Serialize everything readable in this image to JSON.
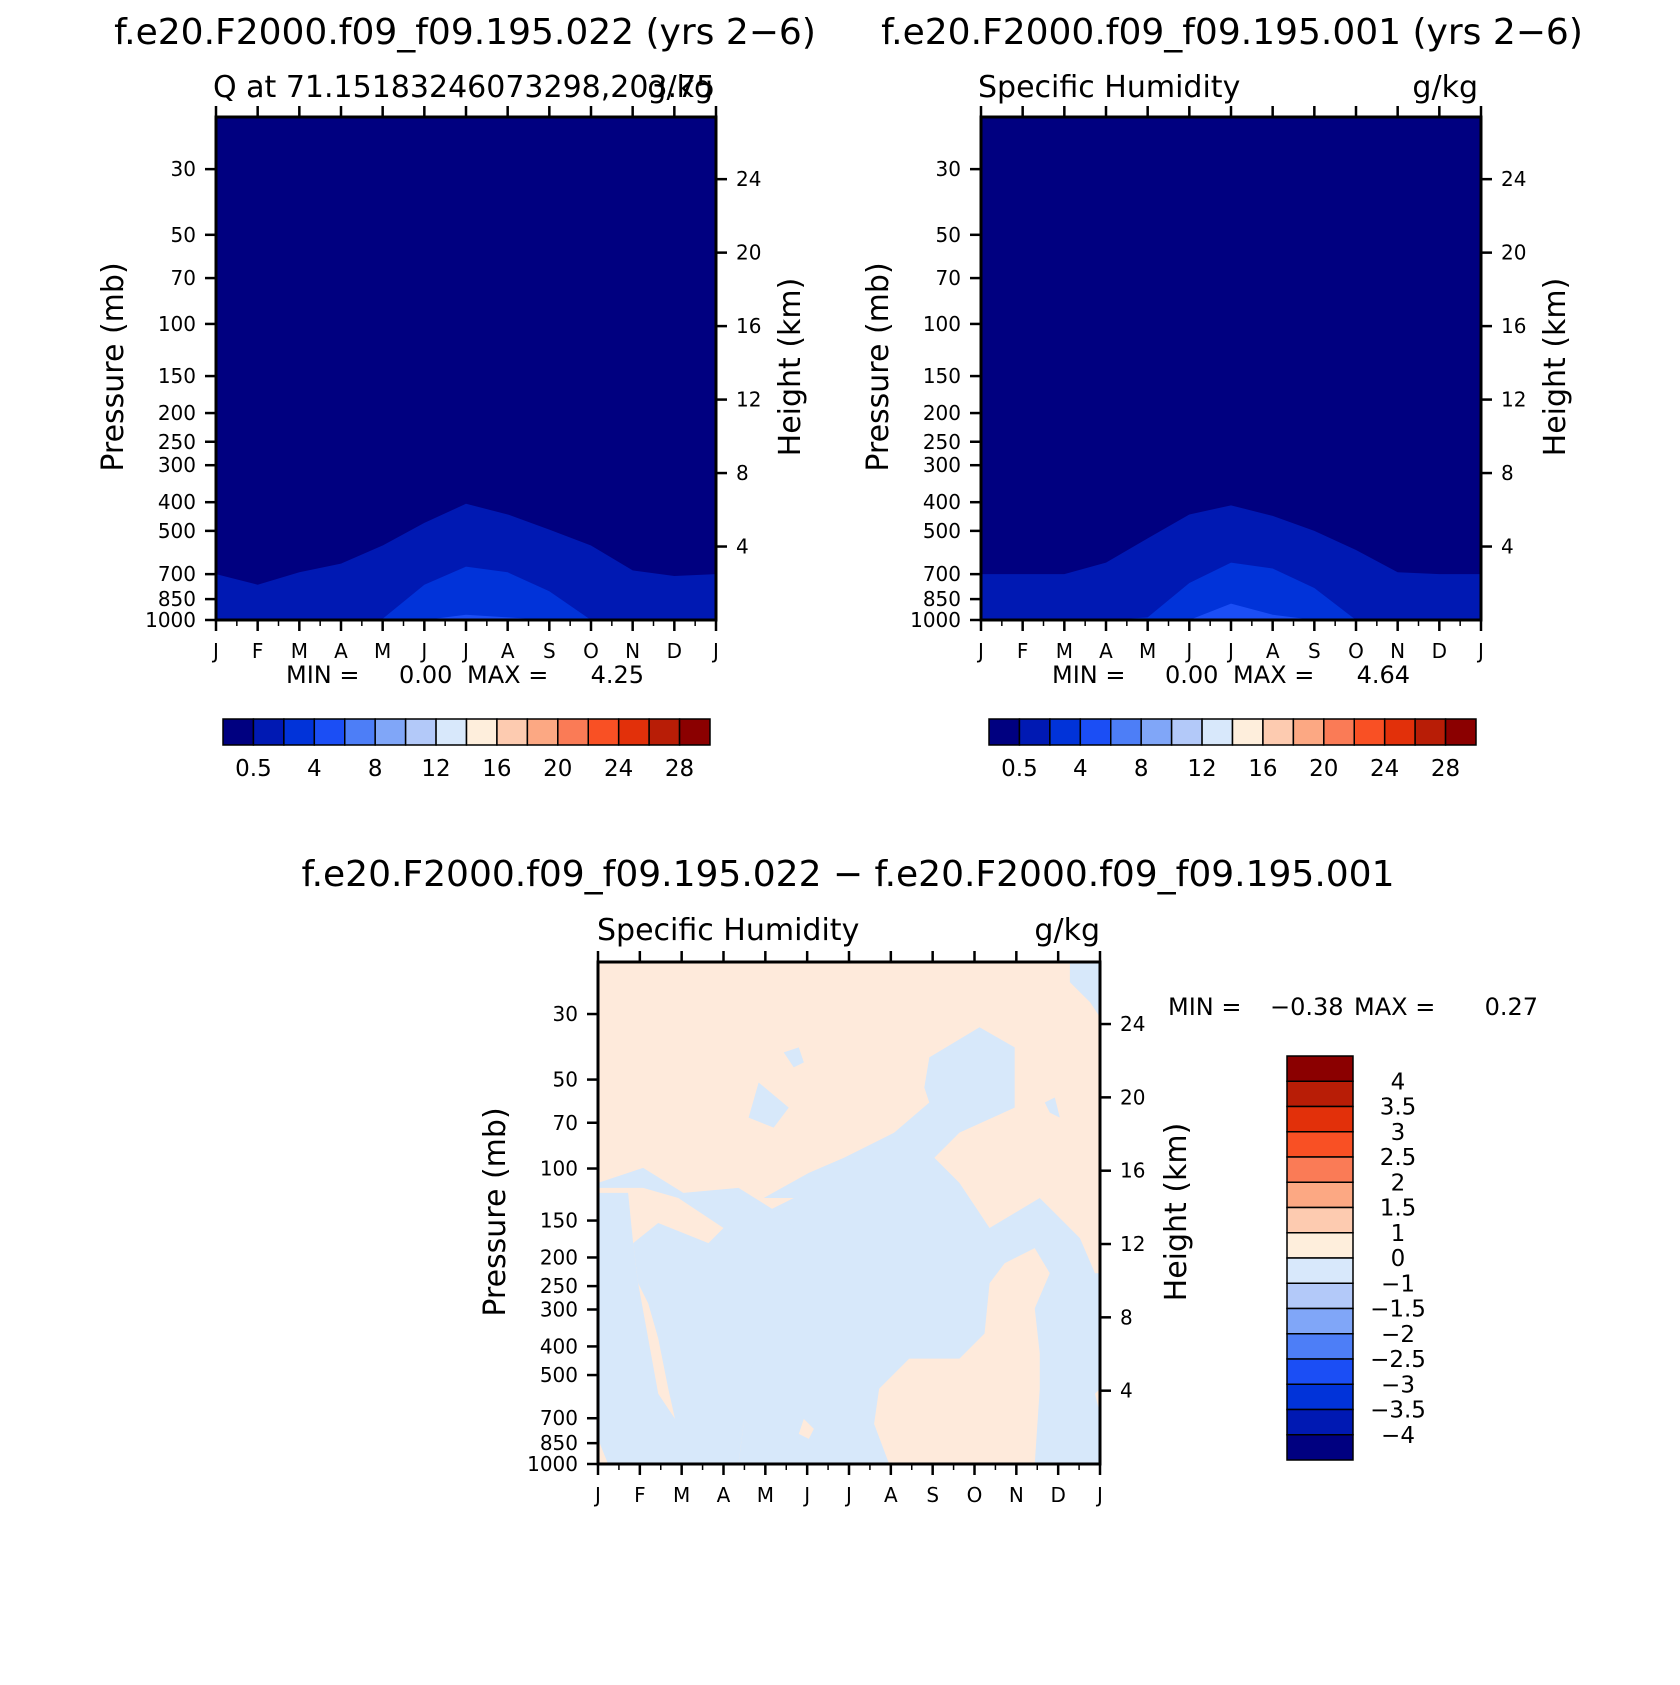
{
  "figure_title": "",
  "colors": {
    "seq": [
      "#000080",
      "#0019b3",
      "#0133d9",
      "#1b4ef5",
      "#4d7ef7",
      "#80a6f8",
      "#b3c9f9",
      "#d8e8fb",
      "#feeedc",
      "#fdcbb0",
      "#fca883",
      "#fa7b56",
      "#f95024",
      "#e2300a",
      "#b81d06",
      "#8b0000"
    ],
    "diff_fill_pos": "#feeadb",
    "diff_fill_neg": "#d7e8fa"
  },
  "panels": [
    {
      "title": "f.e20.F2000.f09_f09.195.022 (yrs 2−6)",
      "left_label": "Q at 71.15183246073298,203.75",
      "right_label": "g/kg",
      "ylabel": "Pressure (mb)",
      "y2label": "Height (km)",
      "min_label": "MIN =",
      "min_value": "0.00",
      "max_label": "MAX =",
      "max_value": "4.25"
    },
    {
      "title": "f.e20.F2000.f09_f09.195.001 (yrs 2−6)",
      "left_label": "Specific Humidity",
      "right_label": "g/kg",
      "ylabel": "Pressure (mb)",
      "y2label": "Height (km)",
      "min_label": "MIN =",
      "min_value": "0.00",
      "max_label": "MAX =",
      "max_value": "4.64"
    },
    {
      "title": "f.e20.F2000.f09_f09.195.022 − f.e20.F2000.f09_f09.195.001",
      "left_label": "Specific Humidity",
      "right_label": "g/kg",
      "ylabel": "Pressure (mb)",
      "y2label": "Height (km)",
      "min_label": "MIN =",
      "min_value": "−0.38",
      "max_label": "MAX =",
      "max_value": "0.27"
    }
  ],
  "chart_data": [
    {
      "type": "contour",
      "x_ticks": [
        "J",
        "F",
        "M",
        "A",
        "M",
        "J",
        "J",
        "A",
        "S",
        "O",
        "N",
        "D",
        "J"
      ],
      "y_ticks": [
        "30",
        "50",
        "70",
        "100",
        "150",
        "200",
        "250",
        "300",
        "400",
        "500",
        "700",
        "850",
        "1000"
      ],
      "y2_ticks": [
        "24",
        "20",
        "16",
        "12",
        "8",
        "4"
      ],
      "ylim": [
        1000,
        20
      ],
      "y_scale": "log",
      "colorbar_labels": [
        "0.5",
        "4",
        "8",
        "12",
        "16",
        "20",
        "24",
        "28"
      ],
      "contours_hpa": {
        "x_month": [
          0,
          1,
          2,
          3,
          4,
          5,
          6,
          7,
          8,
          9,
          10,
          11,
          12
        ],
        "level_0_5": [
          700,
          760,
          690,
          645,
          560,
          470,
          405,
          440,
          495,
          560,
          680,
          710,
          700
        ],
        "level_1": [
          1000,
          1000,
          1000,
          1000,
          990,
          760,
          660,
          690,
          800,
          1000,
          1000,
          1000,
          1000
        ],
        "level_2": [
          1000,
          1000,
          1000,
          1000,
          1000,
          1000,
          960,
          980,
          1000,
          1000,
          1000,
          1000,
          1000
        ]
      }
    },
    {
      "type": "contour",
      "x_ticks": [
        "J",
        "F",
        "M",
        "A",
        "M",
        "J",
        "J",
        "A",
        "S",
        "O",
        "N",
        "D",
        "J"
      ],
      "y_ticks": [
        "30",
        "50",
        "70",
        "100",
        "150",
        "200",
        "250",
        "300",
        "400",
        "500",
        "700",
        "850",
        "1000"
      ],
      "y2_ticks": [
        "24",
        "20",
        "16",
        "12",
        "8",
        "4"
      ],
      "ylim": [
        1000,
        20
      ],
      "y_scale": "log",
      "colorbar_labels": [
        "0.5",
        "4",
        "8",
        "12",
        "16",
        "20",
        "24",
        "28"
      ],
      "contours_hpa": {
        "x_month": [
          0,
          1,
          2,
          3,
          4,
          5,
          6,
          7,
          8,
          9,
          10,
          11,
          12
        ],
        "level_0_5": [
          700,
          700,
          700,
          640,
          530,
          440,
          410,
          445,
          500,
          580,
          690,
          700,
          700
        ],
        "level_1": [
          1000,
          1000,
          1000,
          1000,
          980,
          750,
          640,
          670,
          780,
          1000,
          1000,
          1000,
          1000
        ],
        "level_2": [
          1000,
          1000,
          1000,
          1000,
          1000,
          1000,
          880,
          960,
          1000,
          1000,
          1000,
          1000,
          1000
        ]
      }
    },
    {
      "type": "contour",
      "x_ticks": [
        "J",
        "F",
        "M",
        "A",
        "M",
        "J",
        "J",
        "A",
        "S",
        "O",
        "N",
        "D",
        "J"
      ],
      "y_ticks": [
        "30",
        "50",
        "70",
        "100",
        "150",
        "200",
        "250",
        "300",
        "400",
        "500",
        "700",
        "850",
        "1000"
      ],
      "y2_ticks": [
        "24",
        "20",
        "16",
        "12",
        "8",
        "4"
      ],
      "ylim": [
        1000,
        20
      ],
      "y_scale": "log",
      "colorbar_labels": [
        "4",
        "3.5",
        "3",
        "2.5",
        "2",
        "1.5",
        "1",
        "0",
        "−1",
        "−1.5",
        "−2",
        "−2.5",
        "−3",
        "−3.5",
        "−4"
      ]
    }
  ]
}
